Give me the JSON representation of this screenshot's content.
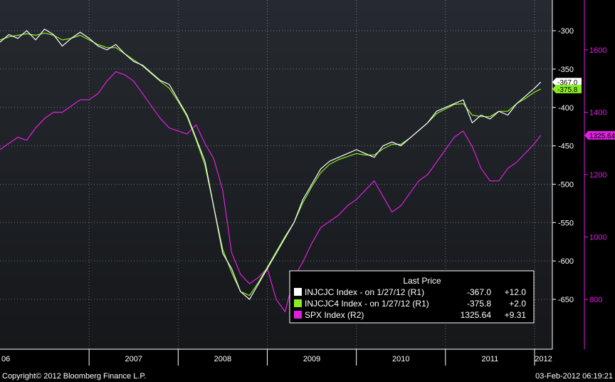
{
  "chart_data": {
    "type": "line",
    "title": "",
    "xlabel": "",
    "ylabel": "",
    "x_ticks": [
      "06",
      "2007",
      "2008",
      "2009",
      "2010",
      "2011",
      "2012"
    ],
    "x_range": [
      2006.0,
      2012.2
    ],
    "y_left_label_axis": "R1",
    "y_left_range": [
      -260,
      -715
    ],
    "y_left_ticks": [
      -300,
      -350,
      -400,
      -450,
      -500,
      -550,
      -600,
      -650
    ],
    "y_right_range": [
      1760,
      640
    ],
    "y_right_ticks": [
      1600,
      1400,
      1200,
      1000,
      800
    ],
    "grid": true,
    "legend_position": "bottom-right",
    "legend_title": "Last Price",
    "series": [
      {
        "name": "INJCJC Index",
        "legend_text": "INJCJC Index -  on 1/27/12  (R1)",
        "last_value": "-367.0",
        "change": "+12.0",
        "marker_label": "-367.0",
        "axis": "R1",
        "color": "#ffffff",
        "x": [
          2006.0,
          2006.1,
          2006.2,
          2006.3,
          2006.4,
          2006.5,
          2006.6,
          2006.7,
          2006.8,
          2006.9,
          2007.0,
          2007.1,
          2007.2,
          2007.3,
          2007.4,
          2007.5,
          2007.6,
          2007.7,
          2007.8,
          2007.9,
          2008.0,
          2008.1,
          2008.2,
          2008.3,
          2008.4,
          2008.5,
          2008.6,
          2008.7,
          2008.8,
          2008.9,
          2009.0,
          2009.1,
          2009.2,
          2009.3,
          2009.4,
          2009.5,
          2009.6,
          2009.7,
          2009.8,
          2009.9,
          2010.0,
          2010.1,
          2010.2,
          2010.3,
          2010.4,
          2010.5,
          2010.6,
          2010.7,
          2010.8,
          2010.9,
          2011.0,
          2011.1,
          2011.2,
          2011.3,
          2011.4,
          2011.5,
          2011.6,
          2011.7,
          2011.8,
          2011.9,
          2012.0,
          2012.07
        ],
        "y": [
          -315,
          -305,
          -310,
          -300,
          -312,
          -298,
          -305,
          -320,
          -310,
          -302,
          -310,
          -320,
          -325,
          -318,
          -330,
          -340,
          -345,
          -355,
          -365,
          -370,
          -390,
          -410,
          -440,
          -470,
          -530,
          -590,
          -610,
          -640,
          -650,
          -630,
          -610,
          -590,
          -570,
          -550,
          -520,
          -500,
          -480,
          -470,
          -465,
          -460,
          -455,
          -460,
          -465,
          -450,
          -445,
          -450,
          -440,
          -430,
          -420,
          -405,
          -400,
          -395,
          -390,
          -420,
          -410,
          -415,
          -405,
          -410,
          -395,
          -385,
          -375,
          -367
        ]
      },
      {
        "name": "INJCJC4 Index",
        "legend_text": "INJCJC4 Index -  on 1/27/12  (R1)",
        "last_value": "-375.8",
        "change": "+2.0",
        "marker_label": "-375.8",
        "axis": "R1",
        "color": "#88ee22",
        "x": [
          2006.0,
          2006.1,
          2006.2,
          2006.3,
          2006.4,
          2006.5,
          2006.6,
          2006.7,
          2006.8,
          2006.9,
          2007.0,
          2007.1,
          2007.2,
          2007.3,
          2007.4,
          2007.5,
          2007.6,
          2007.7,
          2007.8,
          2007.9,
          2008.0,
          2008.1,
          2008.2,
          2008.3,
          2008.4,
          2008.5,
          2008.6,
          2008.7,
          2008.8,
          2008.9,
          2009.0,
          2009.1,
          2009.2,
          2009.3,
          2009.4,
          2009.5,
          2009.6,
          2009.7,
          2009.8,
          2009.9,
          2010.0,
          2010.1,
          2010.2,
          2010.3,
          2010.4,
          2010.5,
          2010.6,
          2010.7,
          2010.8,
          2010.9,
          2011.0,
          2011.1,
          2011.2,
          2011.3,
          2011.4,
          2011.5,
          2011.6,
          2011.7,
          2011.8,
          2011.9,
          2012.0,
          2012.07
        ],
        "y": [
          -312,
          -308,
          -306,
          -304,
          -306,
          -303,
          -306,
          -312,
          -310,
          -306,
          -312,
          -318,
          -322,
          -322,
          -330,
          -338,
          -346,
          -356,
          -366,
          -375,
          -392,
          -412,
          -442,
          -475,
          -530,
          -585,
          -615,
          -640,
          -645,
          -628,
          -608,
          -588,
          -568,
          -550,
          -524,
          -503,
          -485,
          -474,
          -468,
          -464,
          -460,
          -462,
          -462,
          -454,
          -448,
          -448,
          -440,
          -430,
          -420,
          -408,
          -402,
          -396,
          -395,
          -410,
          -412,
          -412,
          -405,
          -405,
          -395,
          -388,
          -380,
          -376
        ]
      },
      {
        "name": "SPX Index",
        "legend_text": "SPX Index  (R2)",
        "last_value": "1325.64",
        "change": "+9.31",
        "marker_label": "1325.64",
        "axis": "R2",
        "color": "#e020e0",
        "x": [
          2006.0,
          2006.1,
          2006.2,
          2006.3,
          2006.4,
          2006.5,
          2006.6,
          2006.7,
          2006.8,
          2006.9,
          2007.0,
          2007.1,
          2007.2,
          2007.3,
          2007.4,
          2007.5,
          2007.6,
          2007.7,
          2007.8,
          2007.9,
          2008.0,
          2008.1,
          2008.2,
          2008.3,
          2008.4,
          2008.5,
          2008.6,
          2008.7,
          2008.8,
          2008.9,
          2009.0,
          2009.1,
          2009.2,
          2009.3,
          2009.4,
          2009.5,
          2009.6,
          2009.7,
          2009.8,
          2009.9,
          2010.0,
          2010.1,
          2010.2,
          2010.3,
          2010.4,
          2010.5,
          2010.6,
          2010.7,
          2010.8,
          2010.9,
          2011.0,
          2011.1,
          2011.2,
          2011.3,
          2011.4,
          2011.5,
          2011.6,
          2011.7,
          2011.8,
          2011.9,
          2012.0,
          2012.07
        ],
        "y": [
          1280,
          1300,
          1320,
          1310,
          1350,
          1380,
          1400,
          1400,
          1420,
          1440,
          1440,
          1460,
          1500,
          1530,
          1520,
          1500,
          1460,
          1420,
          1380,
          1350,
          1340,
          1330,
          1360,
          1300,
          1250,
          1150,
          950,
          880,
          850,
          870,
          900,
          800,
          760,
          870,
          920,
          980,
          1030,
          1050,
          1070,
          1100,
          1120,
          1150,
          1180,
          1130,
          1080,
          1100,
          1140,
          1180,
          1200,
          1240,
          1280,
          1320,
          1340,
          1290,
          1220,
          1180,
          1180,
          1220,
          1240,
          1270,
          1300,
          1326
        ]
      }
    ]
  },
  "footer": {
    "copyright": "Copyright© 2012 Bloomberg Finance L.P.",
    "timestamp": "03-Feb-2012 06:19:21"
  }
}
